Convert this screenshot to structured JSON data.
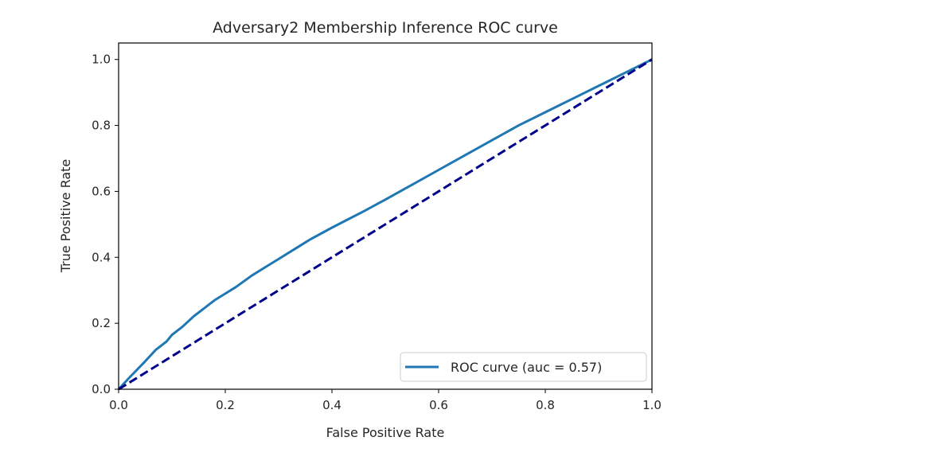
{
  "chart_data": {
    "type": "line",
    "title": "Adversary2 Membership Inference ROC curve",
    "xlabel": "False Positive Rate",
    "ylabel": "True Positive Rate",
    "xlim": [
      0.0,
      1.0
    ],
    "ylim": [
      0.0,
      1.05
    ],
    "xticks": [
      "0.0",
      "0.2",
      "0.4",
      "0.6",
      "0.8",
      "1.0"
    ],
    "yticks": [
      "0.0",
      "0.2",
      "0.4",
      "0.6",
      "0.8",
      "1.0"
    ],
    "grid": false,
    "legend_position": "lower right",
    "series": [
      {
        "name": "ROC curve (auc = 0.57)",
        "color": "#1f77b4",
        "style": "solid",
        "x": [
          0.0,
          0.02,
          0.05,
          0.07,
          0.09,
          0.1,
          0.12,
          0.14,
          0.16,
          0.18,
          0.2,
          0.22,
          0.25,
          0.28,
          0.3,
          0.33,
          0.36,
          0.4,
          0.43,
          0.46,
          0.5,
          0.55,
          0.6,
          0.65,
          0.7,
          0.75,
          0.8,
          0.85,
          0.9,
          0.95,
          1.0
        ],
        "y": [
          0.0,
          0.035,
          0.085,
          0.12,
          0.145,
          0.165,
          0.19,
          0.22,
          0.245,
          0.27,
          0.29,
          0.31,
          0.345,
          0.375,
          0.395,
          0.425,
          0.455,
          0.49,
          0.515,
          0.54,
          0.575,
          0.62,
          0.665,
          0.71,
          0.755,
          0.8,
          0.84,
          0.88,
          0.92,
          0.96,
          1.0
        ]
      },
      {
        "name": "",
        "color": "#00008b",
        "style": "dashed",
        "x": [
          0.0,
          1.0
        ],
        "y": [
          0.0,
          1.0
        ]
      }
    ]
  }
}
